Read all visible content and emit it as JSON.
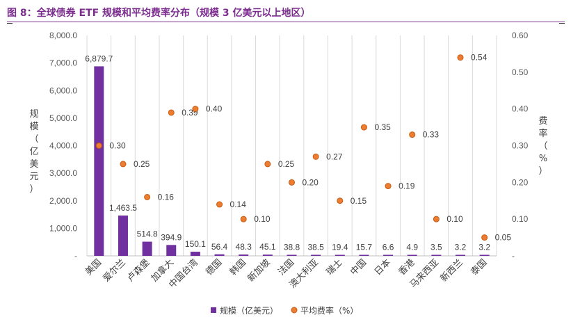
{
  "title": "图 8：全球债券 ETF 规模和平均费率分布（规模 3 亿美元以上地区）",
  "chart_data": {
    "type": "bar",
    "categories": [
      "美国",
      "爱尔兰",
      "卢森堡",
      "加拿大",
      "中国台湾",
      "德国",
      "韩国",
      "新加坡",
      "法国",
      "澳大利亚",
      "瑞士",
      "中国",
      "日本",
      "香港",
      "马来西亚",
      "新西兰",
      "泰国"
    ],
    "series": [
      {
        "name": "规模（亿美元）",
        "type": "bar",
        "axis": "left",
        "color": "#7030A0",
        "values": [
          6879.7,
          1463.5,
          514.8,
          394.9,
          150.1,
          56.4,
          48.3,
          45.1,
          38.8,
          38.5,
          19.4,
          15.7,
          6.6,
          4.9,
          3.5,
          3.2,
          3.2
        ],
        "labels": [
          "6,879.7",
          "1,463.5",
          "514.8",
          "394.9",
          "150.1",
          "56.4",
          "48.3",
          "45.1",
          "38.8",
          "38.5",
          "19.4",
          "15.7",
          "6.6",
          "4.9",
          "3.5",
          "3.2",
          "3.2"
        ]
      },
      {
        "name": "平均费率（%）",
        "type": "scatter",
        "axis": "right",
        "color": "#ED7D31",
        "values": [
          0.3,
          0.25,
          0.16,
          0.39,
          0.4,
          0.14,
          0.1,
          0.25,
          0.2,
          0.27,
          0.15,
          0.35,
          0.19,
          0.33,
          0.1,
          0.54,
          0.05
        ],
        "labels": [
          "0.30",
          "0.25",
          "0.16",
          "0.39",
          "0.40",
          "0.14",
          "0.10",
          "0.25",
          "0.20",
          "0.27",
          "0.15",
          "0.35",
          "0.19",
          "0.33",
          "0.10",
          "0.54",
          "0.05"
        ]
      }
    ],
    "ylabel_left": "规模（亿美元）",
    "ylabel_right": "费率（%）",
    "ylim_left": [
      0,
      8000
    ],
    "ylim_right": [
      0,
      0.6
    ],
    "yticks_left": [
      "-",
      "1,000.0",
      "2,000.0",
      "3,000.0",
      "4,000.0",
      "5,000.0",
      "6,000.0",
      "7,000.0",
      "8,000.0"
    ],
    "yticks_right": [
      "-",
      "0.10",
      "0.20",
      "0.30",
      "0.40",
      "0.50",
      "0.60"
    ],
    "grid": "vertical",
    "legend": "bottom"
  }
}
